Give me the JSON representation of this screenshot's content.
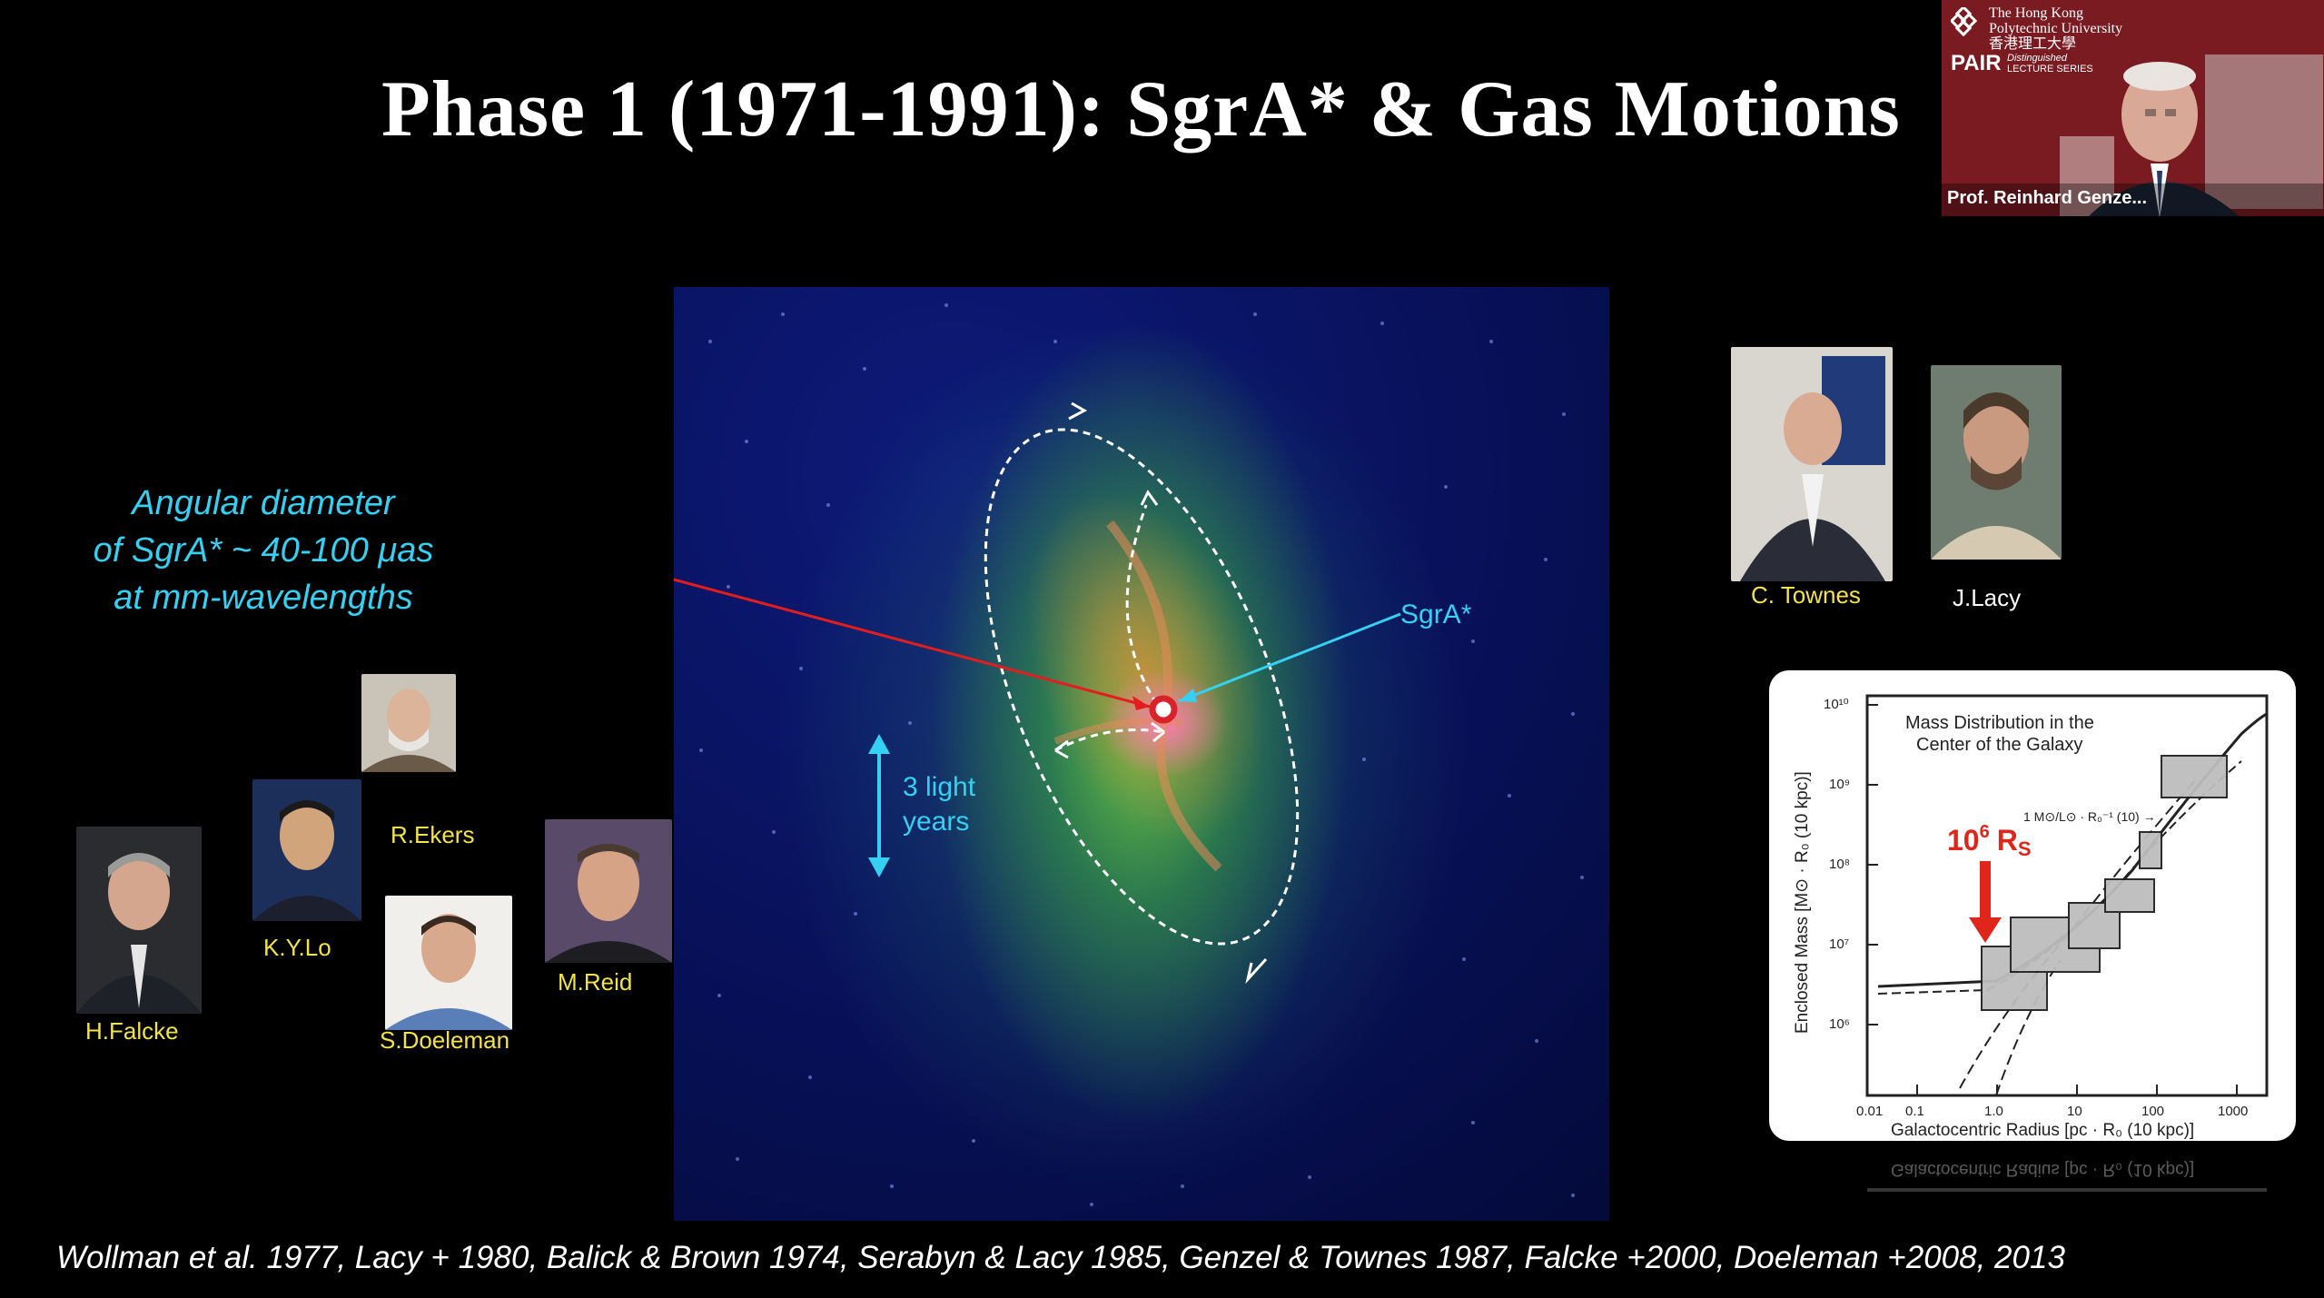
{
  "title": "Phase 1 (1971-1991): SgrA* & Gas Motions",
  "video": {
    "university_line1": "The Hong Kong",
    "university_line2": "Polytechnic University",
    "university_line3": "香港理工大學",
    "series": "PAIR",
    "series_sub1": "Distinguished",
    "series_sub2": "LECTURE SERIES",
    "speaker_name": "Prof. Reinhard Genze...",
    "accent_color": "#7a1b22"
  },
  "annotations": {
    "angular_line1": "Angular diameter",
    "angular_line2": "of SgrA* ~ 40-100 μas",
    "angular_line3": "at mm-wavelengths",
    "sgra": "SgrA*",
    "light_line1": "3 light",
    "light_line2": "years"
  },
  "people": {
    "townes": "C. Townes",
    "lacy": "J.Lacy",
    "ekers": "R.Ekers",
    "lo": "K.Y.Lo",
    "falcke": "H.Falcke",
    "doeleman": "S.Doeleman",
    "reid": "M.Reid"
  },
  "plot": {
    "title_line1": "Mass Distribution in the",
    "title_line2": "Center of the Galaxy",
    "y_label": "Enclosed Mass  [M⊙ · R₀ (10 kpc)]",
    "x_label": "Galactocentric Radius  [pc · R₀ (10 kpc)]",
    "x_ticks": [
      "0.01",
      "0.1",
      "1.0",
      "10",
      "100",
      "1000"
    ],
    "y_ticks": [
      "10⁶",
      "10⁷",
      "10⁸",
      "10⁹",
      "10¹⁰"
    ],
    "ratio_label": "1 M⊙/L⊙ · R₀⁻¹ (10) →",
    "highlight_base": "10",
    "highlight_exp": "6",
    "highlight_r": "R",
    "highlight_s": "S",
    "highlight_color": "#e0261b"
  },
  "references": "Wollman et al. 1977, Lacy + 1980, Balick & Brown 1974, Serabyn & Lacy 1985, Genzel & Townes 1987, Falcke +2000, Doeleman +2008, 2013"
}
